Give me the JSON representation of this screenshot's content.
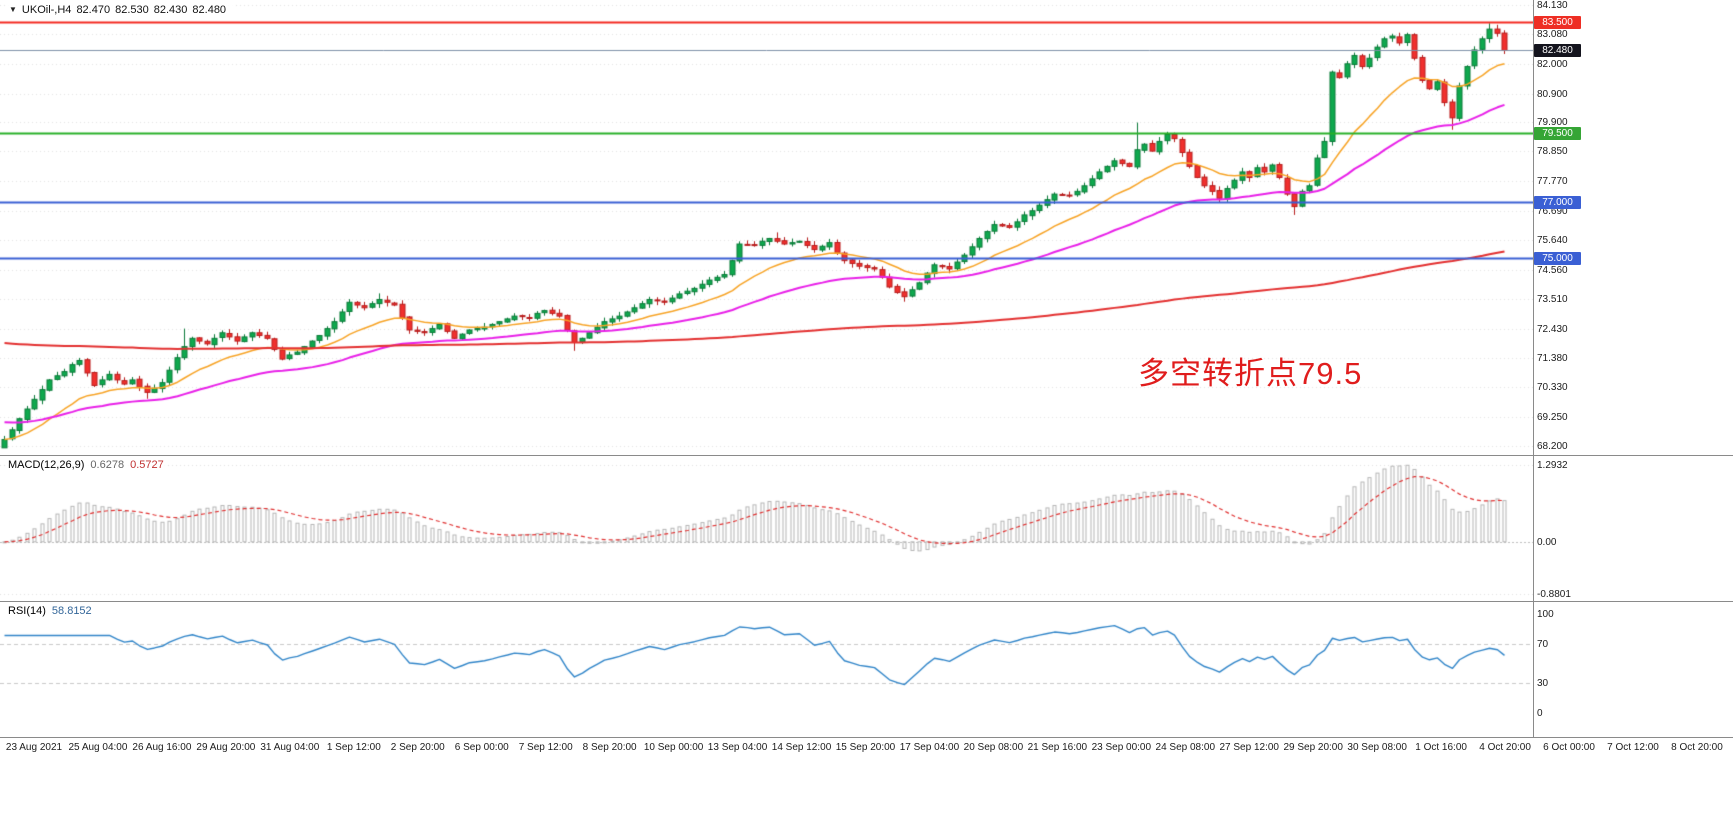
{
  "window": {
    "title": "UKOil- H4 chart",
    "bg": "#ffffff"
  },
  "header": {
    "symbol": "UKOil-,H4",
    "open": "82.470",
    "high": "82.530",
    "low": "82.430",
    "close": "82.480",
    "marker_icon": "▼"
  },
  "annotation": {
    "text": "多空转折点79.5",
    "color": "#e01d1d"
  },
  "price_badges": [
    {
      "label": "83.500",
      "price": 83.5,
      "bg": "#ee2e24"
    },
    {
      "label": "82.480",
      "price": 82.48,
      "bg": "#14141e"
    },
    {
      "label": "79.500",
      "price": 79.5,
      "bg": "#35a535"
    },
    {
      "label": "77.000",
      "price": 77.0,
      "bg": "#3a5fd4"
    },
    {
      "label": "75.000",
      "price": 75.0,
      "bg": "#3a5fd4"
    }
  ],
  "macd_panel": {
    "label": "MACD(12,26,9)",
    "value_main": "0.6278",
    "value_signal": "0.5727",
    "axis": [
      "1.2932",
      "0.00",
      "-0.8801"
    ]
  },
  "rsi_panel": {
    "label": "RSI(14)",
    "value": "58.8152",
    "axis": [
      "100",
      "70",
      "30",
      "0"
    ]
  },
  "chart_data": {
    "type": "candlestick",
    "symbol": "UKOil-",
    "timeframe": "H4",
    "title": "UKOil-,H4 82.470 82.530 82.430 82.480",
    "current_ohlc": {
      "open": 82.47,
      "high": 82.53,
      "low": 82.43,
      "close": 82.48
    },
    "y_range": [
      68.0,
      84.3
    ],
    "y_ticks": [
      "84.130",
      "83.080",
      "82.000",
      "80.900",
      "79.900",
      "78.850",
      "77.770",
      "76.690",
      "75.640",
      "74.560",
      "73.510",
      "72.430",
      "71.380",
      "70.330",
      "69.250",
      "68.200"
    ],
    "x_tick_labels": [
      "23 Aug 2021",
      "25 Aug 04:00",
      "26 Aug 16:00",
      "29 Aug 20:00",
      "31 Aug 04:00",
      "1 Sep 12:00",
      "2 Sep 20:00",
      "6 Sep 00:00",
      "7 Sep 12:00",
      "8 Sep 20:00",
      "10 Sep 00:00",
      "13 Sep 04:00",
      "14 Sep 12:00",
      "15 Sep 20:00",
      "17 Sep 04:00",
      "20 Sep 08:00",
      "21 Sep 16:00",
      "23 Sep 00:00",
      "24 Sep 08:00",
      "27 Sep 12:00",
      "29 Sep 20:00",
      "30 Sep 08:00",
      "1 Oct 16:00",
      "4 Oct 20:00",
      "6 Oct 00:00",
      "7 Oct 12:00",
      "8 Oct 20:00"
    ],
    "seed": 20211008,
    "closes": [
      68.45,
      68.8,
      69.2,
      69.55,
      69.9,
      70.25,
      70.6,
      70.75,
      70.9,
      71.15,
      71.3,
      70.85,
      70.4,
      70.6,
      70.8,
      70.6,
      70.45,
      70.6,
      70.35,
      70.15,
      70.3,
      70.5,
      70.95,
      71.4,
      71.8,
      72.1,
      72.0,
      71.9,
      72.1,
      72.3,
      72.15,
      72.0,
      72.15,
      72.3,
      72.2,
      72.1,
      71.7,
      71.35,
      71.5,
      71.6,
      71.8,
      72.0,
      72.2,
      72.45,
      72.7,
      73.05,
      73.4,
      73.3,
      73.2,
      73.35,
      73.5,
      73.4,
      73.3,
      72.85,
      72.4,
      72.35,
      72.3,
      72.45,
      72.6,
      72.35,
      72.1,
      72.25,
      72.4,
      72.45,
      72.5,
      72.6,
      72.7,
      72.8,
      72.9,
      72.88,
      72.85,
      73.0,
      73.1,
      73.0,
      72.9,
      72.4,
      71.95,
      72.1,
      72.3,
      72.5,
      72.7,
      72.8,
      72.9,
      73.05,
      73.2,
      73.35,
      73.5,
      73.45,
      73.4,
      73.55,
      73.7,
      73.8,
      73.9,
      74.05,
      74.2,
      74.3,
      74.4,
      74.9,
      75.5,
      75.48,
      75.45,
      75.6,
      75.7,
      75.6,
      75.5,
      75.55,
      75.6,
      75.45,
      75.3,
      75.42,
      75.55,
      75.2,
      74.9,
      74.8,
      74.7,
      74.65,
      74.6,
      74.3,
      73.95,
      73.75,
      73.6,
      73.85,
      74.1,
      74.45,
      74.75,
      74.68,
      74.6,
      74.85,
      75.1,
      75.4,
      75.7,
      75.95,
      76.2,
      76.15,
      76.1,
      76.3,
      76.55,
      76.7,
      76.9,
      77.1,
      77.3,
      77.28,
      77.25,
      77.4,
      77.6,
      77.85,
      78.1,
      78.3,
      78.5,
      78.4,
      78.3,
      78.9,
      79.1,
      78.85,
      79.2,
      79.45,
      79.3,
      78.8,
      78.3,
      77.9,
      77.6,
      77.4,
      77.15,
      77.5,
      77.8,
      78.1,
      77.9,
      78.25,
      78.1,
      78.35,
      77.9,
      77.3,
      76.85,
      77.4,
      77.6,
      78.6,
      79.2,
      81.7,
      81.5,
      82.0,
      82.3,
      81.9,
      82.2,
      82.6,
      82.9,
      83.0,
      82.75,
      83.05,
      82.2,
      81.4,
      81.1,
      81.35,
      80.6,
      80.05,
      81.2,
      81.9,
      82.5,
      82.9,
      83.25,
      83.1,
      82.48
    ],
    "wick_overrides": [
      {
        "bar": 0,
        "low": 68.22
      },
      {
        "bar": 19,
        "low": 69.92
      },
      {
        "bar": 24,
        "high": 72.45
      },
      {
        "bar": 50,
        "high": 73.72
      },
      {
        "bar": 76,
        "low": 71.65
      },
      {
        "bar": 103,
        "high": 75.92
      },
      {
        "bar": 120,
        "low": 73.42
      },
      {
        "bar": 151,
        "high": 79.88
      },
      {
        "bar": 172,
        "low": 76.55
      },
      {
        "bar": 187,
        "high": 83.12
      },
      {
        "bar": 193,
        "low": 79.62
      },
      {
        "bar": 198,
        "high": 83.46
      }
    ],
    "up_color": "#0fa84e",
    "up_border": "#0a7a38",
    "down_color": "#f0302e",
    "down_border": "#b71c1c",
    "moving_averages": [
      {
        "name": "fast-ma",
        "period": 16,
        "init": null,
        "color": "#f7a325",
        "width": 1.5
      },
      {
        "name": "medium-ma",
        "period": 45,
        "init": 69.1,
        "color": "#e820e8",
        "width": 2
      },
      {
        "name": "slow-ma",
        "period": 300,
        "init": 71.95,
        "color": "#e33030",
        "width": 2
      }
    ],
    "levels": [
      {
        "price": 83.5,
        "color": "#f42a20",
        "width": 2,
        "style": "solid",
        "name": "resistance-83.5"
      },
      {
        "price": 82.48,
        "color": "#7e90a8",
        "width": 1,
        "style": "solid",
        "name": "current-price-line"
      },
      {
        "price": 79.5,
        "color": "#28b028",
        "width": 2,
        "style": "solid",
        "name": "pivot-79.5"
      },
      {
        "price": 77.0,
        "color": "#3a5fd4",
        "width": 2,
        "style": "solid",
        "name": "support-77"
      },
      {
        "price": 75.0,
        "color": "#3a5fd4",
        "width": 2,
        "style": "solid",
        "name": "support-75"
      }
    ],
    "macd": {
      "fast": 12,
      "slow": 26,
      "signal": 9,
      "current_main": 0.6278,
      "current_signal": 0.5727,
      "display_range": [
        -1.0,
        1.45
      ],
      "axis_max": 1.2932,
      "axis_min": -0.8801,
      "hist_color": "#b5b5b5",
      "signal_color": "#e03030"
    },
    "rsi": {
      "period": 14,
      "current": 58.8152,
      "range": [
        0,
        100
      ],
      "levels": [
        70,
        30
      ],
      "line_color": "#2f84c8"
    }
  }
}
